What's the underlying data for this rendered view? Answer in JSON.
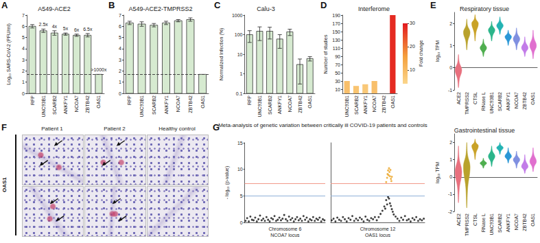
{
  "chart_data": [
    {
      "panel": "A",
      "type": "bar",
      "title": "A549-ACE2",
      "ylabel": "Log₁₀ SARS-CoV-2 (PFU/ml)",
      "categories": [
        "RFP",
        "UNC93B1",
        "SCARB2",
        "ANKFY1",
        "NCOA7",
        "ZBTB42",
        "OAS1"
      ],
      "values": [
        6.0,
        5.6,
        5.4,
        5.3,
        5.2,
        5.2,
        1.7
      ],
      "errors": [
        0.15,
        0.15,
        0.2,
        0.1,
        0.1,
        0.15,
        0
      ],
      "annotations": [
        null,
        "2.5x",
        "4x",
        "5x",
        "6x",
        "6.5x",
        ">1000x"
      ],
      "hlines": [
        {
          "value": 1.7,
          "line_style": "dashed"
        }
      ],
      "color": "#d6ead0",
      "ylim": [
        0,
        7
      ],
      "yticks": [
        0,
        1,
        2,
        3,
        4,
        5,
        6,
        7
      ]
    },
    {
      "panel": "B",
      "type": "bar",
      "title": "A549-ACE2-TMPRSS2",
      "categories": [
        "RFP",
        "UNC93B1",
        "SCARB2",
        "ANKFY1",
        "NCOA7",
        "ZBTB42",
        "OAS1"
      ],
      "values": [
        6.3,
        6.2,
        6.1,
        6.3,
        6.5,
        6.6,
        1.7
      ],
      "errors": [
        0.15,
        0.2,
        0.15,
        0.15,
        0.1,
        0.15,
        0
      ],
      "hlines": [
        {
          "value": 1.7,
          "line_style": "dashed"
        }
      ],
      "color": "#d6ead0",
      "ylim": [
        0,
        7
      ],
      "yticks": [
        0,
        1,
        2,
        3,
        4,
        5,
        6,
        7
      ]
    },
    {
      "panel": "C",
      "type": "bar",
      "title": "Calu-3",
      "ylabel": "Normalized Infection (%)",
      "categories": [
        "RFP",
        "UNC93B1",
        "SCARB2",
        "ANKFY1",
        "NCOA7",
        "ZBTB42",
        "OAS1"
      ],
      "values": [
        100,
        150,
        150,
        60,
        140,
        3,
        6
      ],
      "errors": [
        60,
        100,
        90,
        40,
        50,
        2.7,
        1.5
      ],
      "color": "#d6ead0",
      "log": "y",
      "ylim": [
        0.1,
        1000
      ],
      "yticks": [
        0.1,
        1,
        10,
        100,
        1000
      ]
    },
    {
      "panel": "D",
      "type": "bar",
      "title": "Interferome",
      "ylabel": "Number of studies",
      "categories": [
        "UNC93B1",
        "SCARB2",
        "ANKFY1",
        "NCOA7",
        "ZBTB42",
        "OAS1"
      ],
      "values": [
        30,
        18,
        22,
        30,
        0,
        190
      ],
      "fold_change": [
        9,
        8,
        7,
        9,
        null,
        28
      ],
      "colorbar": {
        "label": "Fold change",
        "range": [
          4,
          30
        ],
        "ticks": [
          10,
          20,
          30
        ]
      },
      "ylim": [
        0,
        190
      ],
      "yticks": [
        10,
        30,
        50,
        70,
        90,
        110,
        130,
        150,
        170,
        190
      ]
    },
    {
      "panel": "E",
      "type": "violin",
      "title": "Respiratory tissue",
      "ylabel": "log₁₀ TPM",
      "categories": [
        "ACE2",
        "TMPRSS2",
        "CTSL",
        "RNase L",
        "UNC93B1",
        "SCARB2",
        "ANKFY1",
        "NCOA7",
        "ZBTB42",
        "OAS1"
      ],
      "values": [
        -0.1,
        1.6,
        2.0,
        0.9,
        1.7,
        1.9,
        1.4,
        1.3,
        0.9,
        1.0
      ],
      "min": [
        -0.9,
        0.8,
        1.2,
        0.5,
        1.2,
        1.5,
        1.0,
        0.8,
        0.5,
        0.4
      ],
      "max": [
        0.6,
        2.2,
        2.4,
        1.3,
        2.1,
        2.3,
        1.7,
        1.8,
        1.4,
        1.7
      ],
      "colors": [
        "#e8707e",
        "#b9a22c",
        "#c9a227",
        "#4fae4f",
        "#2bb58a",
        "#23b3b3",
        "#2a97d6",
        "#7f8fe0",
        "#c27be8",
        "#e06fce"
      ],
      "ylim": [
        -1,
        2.5
      ],
      "yticks": [
        -1,
        0,
        1,
        2
      ]
    },
    {
      "type": "violin",
      "title": "Gastrointestinal tissue",
      "ylabel": "log₁₀ TPM",
      "categories": [
        "ACE2",
        "TMPRSS2",
        "CTSL",
        "RNase L",
        "UNC93B1",
        "SCARB2",
        "ANKFY1",
        "NCOA7",
        "ZBTB42",
        "OAS1"
      ],
      "values": [
        0.3,
        0.6,
        1.8,
        0.8,
        1.2,
        1.7,
        1.2,
        1.0,
        0.6,
        0.9
      ],
      "min": [
        -1.5,
        -1.8,
        1.0,
        0.5,
        0.6,
        1.3,
        0.8,
        0.5,
        0.2,
        0.3
      ],
      "max": [
        1.8,
        2.0,
        2.2,
        1.1,
        1.8,
        2.0,
        1.7,
        1.5,
        1.3,
        1.7
      ],
      "colors": [
        "#e8707e",
        "#b9a22c",
        "#c9a227",
        "#4fae4f",
        "#2bb58a",
        "#23b3b3",
        "#2a97d6",
        "#7f8fe0",
        "#c27be8",
        "#e06fce"
      ],
      "ylim": [
        -2,
        2.5
      ],
      "yticks": [
        -2,
        -1,
        0,
        1,
        2
      ]
    },
    {
      "panel": "G",
      "type": "scatter",
      "title": "Meta-analysis of genetic variation between critically ill COVID-19 patients and controls",
      "ylabel": "- log₁₀ (p-value)",
      "xlabel": "Chromosome 6\nNCOA7 locus",
      "tick_labels": "y",
      "series": [
        {
          "color": "#111111",
          "x": [
            1,
            3,
            5,
            7,
            9,
            11,
            13,
            15,
            17,
            19,
            21,
            23,
            25,
            27,
            29,
            31,
            33,
            35,
            37,
            39,
            41,
            43,
            45,
            47,
            49,
            51,
            53,
            55,
            57,
            59,
            61,
            63,
            65,
            67,
            69,
            71,
            73,
            75,
            77,
            79,
            81,
            83,
            85,
            87,
            89,
            91,
            93,
            95,
            97,
            99
          ],
          "values": [
            0.3,
            0.8,
            0.2,
            1.1,
            0.5,
            0.4,
            0.9,
            0.2,
            0.6,
            1.3,
            0.4,
            0.7,
            0.3,
            1.0,
            0.5,
            0.2,
            0.8,
            0.6,
            1.2,
            0.3,
            0.5,
            0.9,
            0.4,
            0.7,
            1.4,
            0.6,
            0.3,
            1.1,
            0.5,
            0.8,
            0.2,
            0.6,
            1.0,
            0.4,
            0.7,
            0.3,
            1.2,
            0.5,
            0.9,
            0.2,
            0.6,
            0.4,
            1.0,
            0.3,
            0.7,
            0.5,
            0.9,
            0.2,
            0.6,
            0.4
          ]
        }
      ],
      "hlines": [
        {
          "value": 7.3,
          "color": "#f19a8a"
        },
        {
          "value": 5,
          "color": "#8fb0d8"
        }
      ],
      "xlim": [
        0,
        100
      ],
      "ylim": [
        0,
        15
      ],
      "yticks": [
        0,
        5,
        10,
        15
      ]
    },
    {
      "type": "scatter",
      "xlabel": "Chromosome 12\nOAS1 locus",
      "tick_labels": false,
      "series": [
        {
          "color": "#111111",
          "x": [
            1,
            3,
            5,
            7,
            9,
            11,
            13,
            15,
            17,
            19,
            21,
            23,
            25,
            27,
            29,
            31,
            33,
            35,
            37,
            39,
            41,
            43,
            45,
            47,
            49,
            51,
            53,
            55,
            57,
            59,
            61,
            63,
            65,
            67,
            69,
            71,
            73,
            75,
            77,
            79,
            81,
            83,
            85,
            87,
            89,
            91,
            93,
            95,
            97,
            99,
            58,
            60,
            62,
            64,
            66
          ],
          "values": [
            0.4,
            0.7,
            0.2,
            0.9,
            0.5,
            0.3,
            1.0,
            0.6,
            0.2,
            0.8,
            0.5,
            1.2,
            0.3,
            0.7,
            0.4,
            0.9,
            0.6,
            0.2,
            1.1,
            0.5,
            0.3,
            0.8,
            0.6,
            1.0,
            0.4,
            1.0,
            1.6,
            2.2,
            3.0,
            4.2,
            4.8,
            3.6,
            2.5,
            1.5,
            1.1,
            0.7,
            0.3,
            0.9,
            0.5,
            1.2,
            0.4,
            0.6,
            0.2,
            0.8,
            0.5,
            1.0,
            0.3,
            0.6,
            0.4,
            0.7,
            2.6,
            3.4,
            4.5,
            3.1,
            2.0
          ]
        },
        {
          "color": "#eba21f",
          "x": [
            59,
            60,
            60.5,
            61,
            61.5,
            62,
            62.5,
            63,
            63.5,
            64,
            64.5,
            65
          ],
          "values": [
            7.6,
            8.4,
            9.1,
            9.8,
            8.9,
            10.2,
            9.5,
            8.7,
            9.9,
            8.2,
            7.8,
            8.6
          ]
        }
      ],
      "hlines": [
        {
          "value": 7.3,
          "color": "#f19a8a"
        },
        {
          "value": 5,
          "color": "#8fb0d8"
        }
      ],
      "xlim": [
        0,
        100
      ],
      "ylim": [
        0,
        15
      ],
      "yticks": [
        0,
        5,
        10,
        15
      ]
    }
  ],
  "image_panel": {
    "panel": "F",
    "row_label": "OAS1",
    "columns": [
      "Patient 1",
      "Patient 2",
      "Healthy control"
    ]
  }
}
